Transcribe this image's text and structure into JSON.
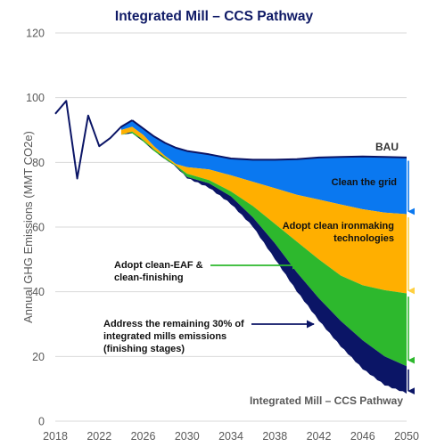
{
  "chart_data": {
    "type": "area",
    "title": "Integrated Mill – CCS Pathway",
    "ylabel": "Annual GHG Emissions (MMT CO2e)",
    "xlim": [
      2018,
      2050
    ],
    "ylim": [
      0,
      120
    ],
    "x_ticks": [
      "2018",
      "2022",
      "2026",
      "2030",
      "2034",
      "2038",
      "2042",
      "2046",
      "2050"
    ],
    "y_ticks": [
      "0",
      "20",
      "40",
      "60",
      "80",
      "100",
      "120"
    ],
    "grid": "horizontal",
    "history": {
      "x": [
        2018,
        2019,
        2020,
        2021,
        2022,
        2023,
        2024,
        2025
      ],
      "y": [
        95,
        99,
        75,
        94.5,
        85,
        87.5,
        91,
        93
      ]
    },
    "bau": {
      "name": "BAU",
      "x": [
        2025,
        2026,
        2027,
        2028,
        2029,
        2030,
        2032,
        2034,
        2036,
        2038,
        2040,
        2042,
        2044,
        2046,
        2048,
        2050
      ],
      "y": [
        93,
        90.5,
        88,
        86,
        84.5,
        83.5,
        82.5,
        81.2,
        80.8,
        80.8,
        81.0,
        81.5,
        81.7,
        81.8,
        81.7,
        81.5
      ]
    },
    "stacked_series": {
      "x": [
        2024,
        2025,
        2026,
        2027,
        2028,
        2029,
        2030,
        2032,
        2034,
        2036,
        2038,
        2040,
        2042,
        2044,
        2046,
        2048,
        2050
      ],
      "clean_grid_bottom": [
        90,
        91,
        88.5,
        85,
        82,
        79.5,
        78.5,
        77.8,
        76,
        74,
        72,
        70,
        68.5,
        67,
        65.5,
        64.5,
        64
      ],
      "ironmaking_bottom": [
        88.5,
        89.5,
        87,
        84,
        81.5,
        79,
        76.5,
        74.5,
        71,
        66.5,
        61,
        55.5,
        50,
        45,
        42,
        40.5,
        39.5
      ],
      "eaf_bottom": [
        88.5,
        89,
        86.5,
        83.5,
        81,
        78.8,
        75.5,
        73.5,
        69.5,
        63,
        55,
        46,
        38,
        31,
        25,
        20,
        17
      ],
      "pathway": [
        88.5,
        89,
        86.5,
        83.5,
        81,
        78.5,
        75,
        72,
        67,
        60,
        50,
        40,
        31,
        23,
        16,
        11,
        8.5
      ]
    },
    "series": [
      {
        "name": "Clean the grid",
        "color": "#0a78f0"
      },
      {
        "name": "Adopt clean ironmaking technologies",
        "color": "#ffaf00"
      },
      {
        "name": "Adopt clean-EAF & clean-finishing",
        "color": "#2db82d"
      },
      {
        "name": "Address the remaining 30% of integrated mills emissions (finishing stages)",
        "color": "#0b1566"
      }
    ],
    "end_labels": {
      "bau": "BAU",
      "pathway": "Integrated Mill – CCS Pathway"
    },
    "annotations": {
      "clean_grid": "Clean the grid",
      "ironmaking": [
        "Adopt clean ironmaking",
        "technologies"
      ],
      "eaf": [
        "Adopt clean-EAF &",
        "clean-finishing"
      ],
      "remaining": [
        "Address the remaining 30% of",
        "integrated mills emissions",
        "(finishing stages)"
      ]
    },
    "colors": {
      "line": "#0b1566",
      "grid": "#d9d9d9",
      "blue": "#0a78f0",
      "orange": "#ffaf00",
      "green": "#2db82d",
      "navy": "#0b1566",
      "yellow_arrow": "#ffd040"
    }
  }
}
